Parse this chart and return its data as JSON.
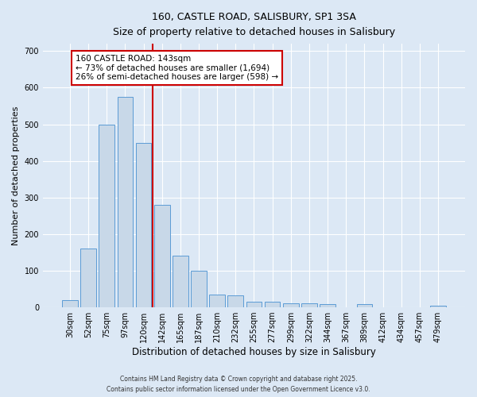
{
  "title_line1": "160, CASTLE ROAD, SALISBURY, SP1 3SA",
  "title_line2": "Size of property relative to detached houses in Salisbury",
  "xlabel": "Distribution of detached houses by size in Salisbury",
  "ylabel": "Number of detached properties",
  "categories": [
    "30sqm",
    "52sqm",
    "75sqm",
    "97sqm",
    "120sqm",
    "142sqm",
    "165sqm",
    "187sqm",
    "210sqm",
    "232sqm",
    "255sqm",
    "277sqm",
    "299sqm",
    "322sqm",
    "344sqm",
    "367sqm",
    "389sqm",
    "412sqm",
    "434sqm",
    "457sqm",
    "479sqm"
  ],
  "values": [
    20,
    160,
    500,
    575,
    450,
    280,
    142,
    100,
    35,
    33,
    15,
    15,
    12,
    12,
    8,
    0,
    8,
    0,
    0,
    0,
    5
  ],
  "bar_color": "#c8d8e8",
  "bar_edge_color": "#5b9bd5",
  "vline_x_idx": 4.5,
  "vline_color": "#cc0000",
  "annotation_text": "160 CASTLE ROAD: 143sqm\n← 73% of detached houses are smaller (1,694)\n26% of semi-detached houses are larger (598) →",
  "annotation_box_color": "#ffffff",
  "annotation_box_edge": "#cc0000",
  "ylim": [
    0,
    720
  ],
  "yticks": [
    0,
    100,
    200,
    300,
    400,
    500,
    600,
    700
  ],
  "background_color": "#dce8f5",
  "grid_color": "#ffffff",
  "footer_line1": "Contains HM Land Registry data © Crown copyright and database right 2025.",
  "footer_line2": "Contains public sector information licensed under the Open Government Licence v3.0."
}
